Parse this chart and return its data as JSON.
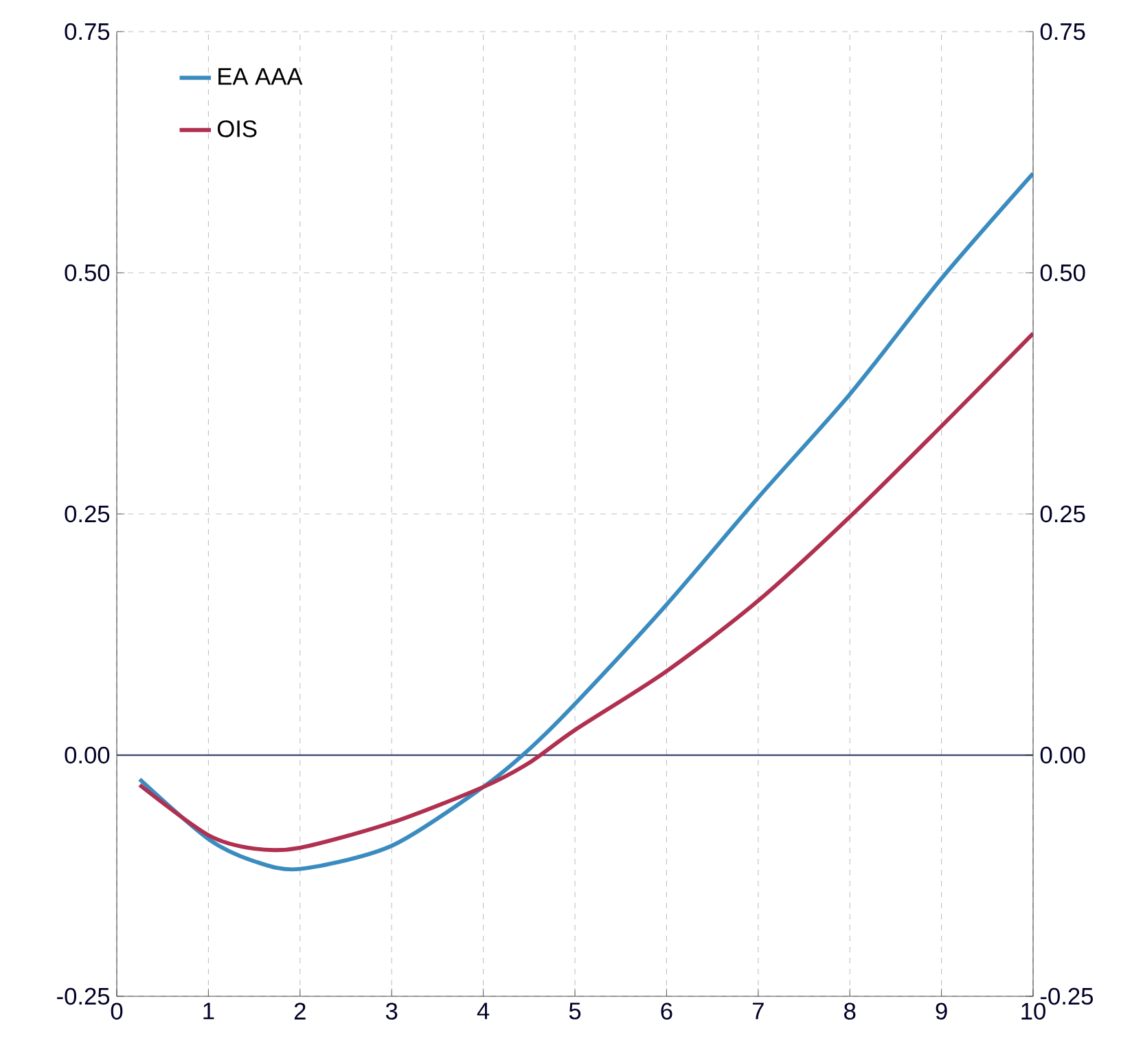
{
  "chart_data": {
    "type": "line",
    "x": [
      0.25,
      1,
      1.5,
      2,
      3,
      4,
      4.5,
      5,
      6,
      7,
      8,
      9,
      10
    ],
    "series": [
      {
        "name": "EA AAA",
        "color": "#3a8cc0",
        "values": [
          -0.025,
          -0.087,
          -0.11,
          -0.118,
          -0.094,
          -0.033,
          0.006,
          0.053,
          0.156,
          0.267,
          0.374,
          0.494,
          0.603
        ]
      },
      {
        "name": "OIS",
        "color": "#b03050",
        "values": [
          -0.031,
          -0.083,
          -0.097,
          -0.096,
          -0.07,
          -0.033,
          -0.008,
          0.026,
          0.087,
          0.16,
          0.247,
          0.341,
          0.437
        ]
      }
    ],
    "xlim": [
      0,
      10
    ],
    "xticks": [
      0,
      1,
      2,
      3,
      4,
      5,
      6,
      7,
      8,
      9,
      10
    ],
    "ylim": [
      -0.25,
      0.75
    ],
    "yticks": [
      {
        "value": -0.25,
        "label": "-0.25"
      },
      {
        "value": 0,
        "label": "0.00"
      },
      {
        "value": 0.25,
        "label": "0.25"
      },
      {
        "value": 0.5,
        "label": "0.50"
      },
      {
        "value": 0.75,
        "label": "0.75"
      }
    ],
    "y2lim": [
      -0.25,
      0.75
    ],
    "y2ticks": [
      {
        "value": -0.25,
        "label": "-0.25"
      },
      {
        "value": 0,
        "label": "0.00"
      },
      {
        "value": 0.25,
        "label": "0.25"
      },
      {
        "value": 0.5,
        "label": "0.50"
      },
      {
        "value": 0.75,
        "label": "0.75"
      }
    ],
    "ref_lines": [
      {
        "axis": "y",
        "value": 0,
        "color": "#404a70"
      }
    ],
    "grid": true,
    "legend": "top left",
    "marker": "none",
    "line_style": "solid"
  }
}
